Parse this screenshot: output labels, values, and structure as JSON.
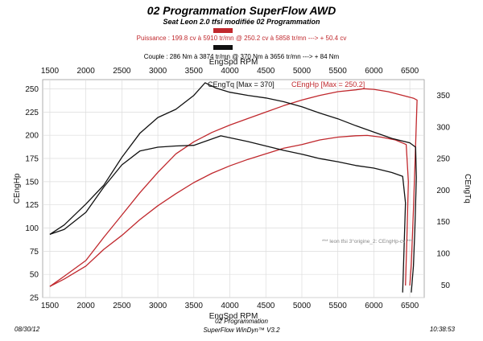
{
  "header": {
    "title": "02 Programmation SuperFlow AWD",
    "subtitle": "Seat Leon 2.0 tfsi modifiée 02 Programmation",
    "power_line": "Puissance : 199.8 cv à 5910 tr/mn  @  250.2 cv à 5858 tr/mn    ---> + 50.4 cv",
    "torque_line": "Couple : 286 Nm à 3874 tr/mn  @  370 Nm à 3656 tr/mn    ---> + 84 Nm"
  },
  "footer": {
    "date": "08/30/12",
    "company": "02 Programmation",
    "software": "SuperFlow WinDyn™ V3.2",
    "time": "10:38:53"
  },
  "colors": {
    "hp": "#c0282d",
    "tq": "#111111",
    "grid": "#dcdcdc"
  },
  "chart_data": {
    "type": "line",
    "xlabel": "EngSpd RPM",
    "ylabel_left": "CEngHp",
    "ylabel_right": "CEngTq",
    "xlim": [
      1400,
      6700
    ],
    "ylim_left": [
      25,
      260
    ],
    "ylim_right": [
      30,
      375
    ],
    "x_ticks": [
      1500,
      2000,
      2500,
      3000,
      3500,
      4000,
      4500,
      5000,
      5500,
      6000,
      6500
    ],
    "y_ticks_left": [
      25,
      50,
      75,
      100,
      125,
      150,
      175,
      200,
      225,
      250
    ],
    "y_ticks_right": [
      50,
      100,
      150,
      200,
      250,
      300,
      350
    ],
    "grid": true,
    "legend": [
      {
        "label": "CEngTq [Max = 370]",
        "color": "#111111"
      },
      {
        "label": "CEngHp [Max = 250.2]",
        "color": "#c0282d"
      }
    ],
    "annotation": "*** leon tfsi 3°origine_2: CEngHp-cv    ***",
    "series": [
      {
        "name": "CEngHp",
        "axis": "left",
        "color": "#c0282d",
        "points": [
          [
            1500,
            37
          ],
          [
            1700,
            48
          ],
          [
            2000,
            65
          ],
          [
            2250,
            90
          ],
          [
            2500,
            114
          ],
          [
            2750,
            138
          ],
          [
            3000,
            160
          ],
          [
            3250,
            180
          ],
          [
            3500,
            193
          ],
          [
            3750,
            203
          ],
          [
            4000,
            211
          ],
          [
            4250,
            218
          ],
          [
            4500,
            225
          ],
          [
            4750,
            232
          ],
          [
            5000,
            238
          ],
          [
            5250,
            243
          ],
          [
            5500,
            247
          ],
          [
            5750,
            249
          ],
          [
            5858,
            250.2
          ],
          [
            6000,
            249.5
          ],
          [
            6200,
            247
          ],
          [
            6400,
            243
          ],
          [
            6550,
            240
          ],
          [
            6600,
            238
          ],
          [
            6580,
            190
          ],
          [
            6550,
            120
          ],
          [
            6520,
            60
          ],
          [
            6500,
            38
          ]
        ]
      },
      {
        "name": "CEngHp",
        "axis": "left",
        "color": "#c0282d",
        "points": [
          [
            1500,
            37
          ],
          [
            1700,
            45
          ],
          [
            2000,
            59
          ],
          [
            2250,
            77
          ],
          [
            2500,
            92
          ],
          [
            2750,
            109
          ],
          [
            3000,
            124
          ],
          [
            3250,
            137
          ],
          [
            3500,
            149
          ],
          [
            3750,
            159
          ],
          [
            4000,
            167
          ],
          [
            4250,
            174
          ],
          [
            4500,
            180
          ],
          [
            4750,
            186
          ],
          [
            5000,
            190
          ],
          [
            5250,
            195
          ],
          [
            5500,
            198
          ],
          [
            5750,
            199.5
          ],
          [
            5910,
            199.8
          ],
          [
            6100,
            198
          ],
          [
            6300,
            195
          ],
          [
            6450,
            190
          ],
          [
            6480,
            150
          ],
          [
            6460,
            90
          ],
          [
            6440,
            38
          ]
        ]
      },
      {
        "name": "CEngTq",
        "axis": "right",
        "color": "#111111",
        "points": [
          [
            1500,
            130
          ],
          [
            1700,
            145
          ],
          [
            2000,
            178
          ],
          [
            2250,
            208
          ],
          [
            2500,
            252
          ],
          [
            2750,
            290
          ],
          [
            3000,
            315
          ],
          [
            3250,
            328
          ],
          [
            3500,
            350
          ],
          [
            3656,
            370
          ],
          [
            3800,
            362
          ],
          [
            4000,
            355
          ],
          [
            4250,
            350
          ],
          [
            4500,
            346
          ],
          [
            4750,
            340
          ],
          [
            5000,
            332
          ],
          [
            5250,
            322
          ],
          [
            5500,
            313
          ],
          [
            5750,
            302
          ],
          [
            6000,
            292
          ],
          [
            6250,
            282
          ],
          [
            6500,
            275
          ],
          [
            6580,
            268
          ],
          [
            6590,
            220
          ],
          [
            6570,
            140
          ],
          [
            6550,
            80
          ],
          [
            6520,
            38
          ]
        ]
      },
      {
        "name": "CEngTq",
        "axis": "right",
        "color": "#111111",
        "points": [
          [
            1500,
            130
          ],
          [
            1700,
            138
          ],
          [
            2000,
            165
          ],
          [
            2250,
            205
          ],
          [
            2500,
            240
          ],
          [
            2750,
            262
          ],
          [
            3000,
            268
          ],
          [
            3250,
            270
          ],
          [
            3500,
            271
          ],
          [
            3874,
            286
          ],
          [
            4000,
            283
          ],
          [
            4250,
            277
          ],
          [
            4500,
            270
          ],
          [
            4750,
            263
          ],
          [
            5000,
            257
          ],
          [
            5250,
            250
          ],
          [
            5500,
            245
          ],
          [
            5750,
            239
          ],
          [
            6000,
            235
          ],
          [
            6250,
            228
          ],
          [
            6400,
            222
          ],
          [
            6440,
            180
          ],
          [
            6420,
            110
          ],
          [
            6400,
            38
          ]
        ]
      }
    ]
  }
}
